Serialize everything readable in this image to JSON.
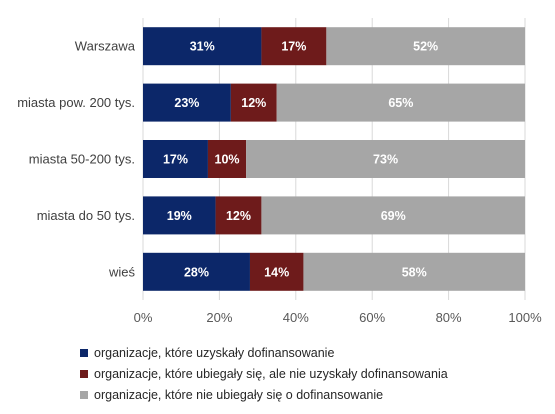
{
  "chart_data": {
    "type": "bar",
    "orientation": "horizontal",
    "stacked": true,
    "categories": [
      "Warszawa",
      "miasta pow. 200 tys.",
      "miasta 50-200 tys.",
      "miasta do 50 tys.",
      "wieś"
    ],
    "series": [
      {
        "name": "organizacje, które uzyskały dofinansowanie",
        "color": "#0c2769",
        "values": [
          31,
          23,
          17,
          19,
          28
        ],
        "labels": [
          "31%",
          "23%",
          "17%",
          "19%",
          "28%"
        ]
      },
      {
        "name": "organizacje, które ubiegały się, ale nie uzyskały dofinansowania",
        "color": "#6e1b1b",
        "values": [
          17,
          12,
          10,
          12,
          14
        ],
        "labels": [
          "17%",
          "12%",
          "10%",
          "12%",
          "14%"
        ]
      },
      {
        "name": "organizacje, które nie ubiegały się o dofinansowanie",
        "color": "#a6a6a6",
        "values": [
          52,
          65,
          73,
          69,
          58
        ],
        "labels": [
          "52%",
          "65%",
          "73%",
          "69%",
          "58%"
        ]
      }
    ],
    "xlim": [
      0,
      100
    ],
    "x_ticks": [
      "0%",
      "20%",
      "40%",
      "60%",
      "80%",
      "100%"
    ],
    "grid": true,
    "legend": "bottom"
  }
}
